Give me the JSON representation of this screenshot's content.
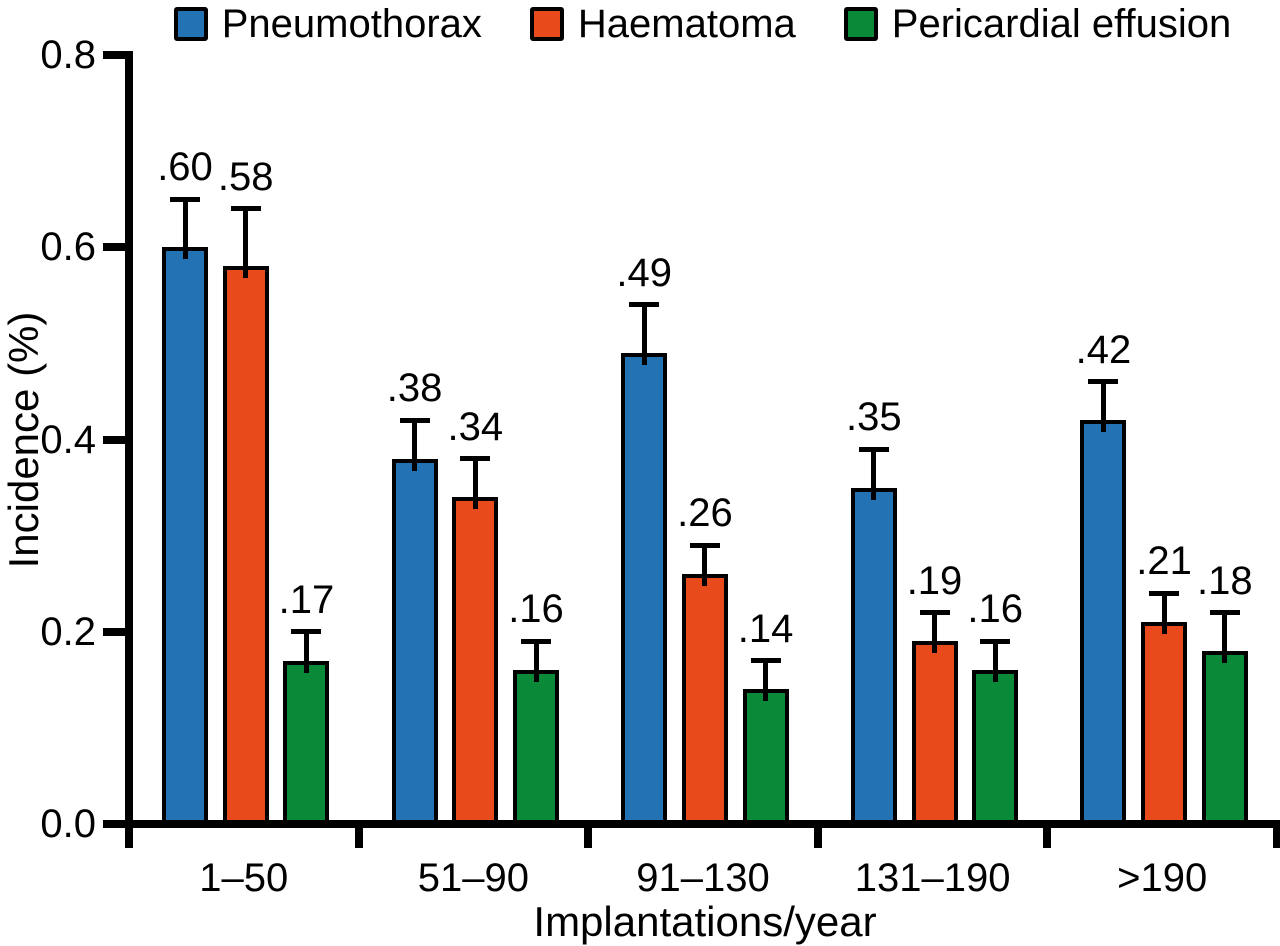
{
  "chart_data": {
    "type": "bar",
    "title": "",
    "xlabel": "Implantations/year",
    "ylabel": "Incidence (%)",
    "ylim": [
      0.0,
      0.8
    ],
    "yticks": [
      {
        "value": 0.0,
        "label": "0.0"
      },
      {
        "value": 0.2,
        "label": "0.2"
      },
      {
        "value": 0.4,
        "label": "0.4"
      },
      {
        "value": 0.6,
        "label": "0.6"
      },
      {
        "value": 0.8,
        "label": "0.8"
      }
    ],
    "categories": [
      "1–50",
      "51–90",
      "91–130",
      "131–190",
      ">190"
    ],
    "legend_position": "top",
    "grid": false,
    "error_bars": true,
    "colors": {
      "pneumothorax": "#2272B4",
      "haematoma": "#E84A1C",
      "pericardial_effusion": "#0A8A38",
      "axis": "#000000",
      "background": "#FFFFFF"
    },
    "series": [
      {
        "name": "Pneumothorax",
        "color": "#2272B4",
        "values": [
          0.6,
          0.38,
          0.49,
          0.35,
          0.42
        ],
        "errors": [
          0.05,
          0.04,
          0.05,
          0.04,
          0.04
        ],
        "labels": [
          ".60",
          ".38",
          ".49",
          ".35",
          ".42"
        ]
      },
      {
        "name": "Haematoma",
        "color": "#E84A1C",
        "values": [
          0.58,
          0.34,
          0.26,
          0.19,
          0.21
        ],
        "errors": [
          0.06,
          0.04,
          0.03,
          0.03,
          0.03
        ],
        "labels": [
          ".58",
          ".34",
          ".26",
          ".19",
          ".21"
        ]
      },
      {
        "name": "Pericardial effusion",
        "color": "#0A8A38",
        "values": [
          0.17,
          0.16,
          0.14,
          0.16,
          0.18
        ],
        "errors": [
          0.03,
          0.03,
          0.03,
          0.03,
          0.04
        ],
        "labels": [
          ".17",
          ".16",
          ".14",
          ".16",
          ".18"
        ]
      }
    ]
  }
}
